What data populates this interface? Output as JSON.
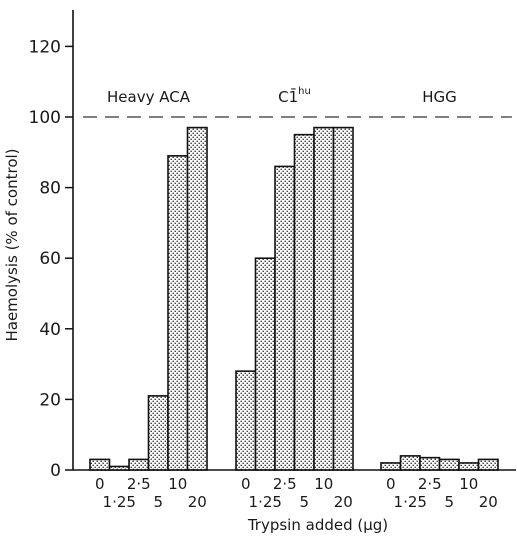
{
  "chart_data": {
    "type": "bar",
    "ylabel": "Haemolysis (% of control)",
    "xlabel": "Trypsin added (μg)",
    "ylim": [
      0,
      130
    ],
    "yticks": [
      0,
      20,
      40,
      60,
      80,
      100,
      120
    ],
    "reference_line": {
      "y": 100,
      "style": "dashed"
    },
    "categories": [
      "0",
      "1·25",
      "2·5",
      "5",
      "10",
      "20"
    ],
    "groups": [
      {
        "label": "Heavy ACA",
        "values": [
          3,
          1,
          3,
          21,
          89,
          97
        ]
      },
      {
        "label": "C1̄ᴴᵘ",
        "label_main": "C1̄",
        "label_sup": "hu",
        "values": [
          28,
          60,
          86,
          95,
          97,
          97
        ]
      },
      {
        "label": "HGG",
        "values": [
          2,
          4,
          3.5,
          3,
          2,
          3
        ]
      }
    ],
    "grid": false,
    "legend": "none"
  }
}
